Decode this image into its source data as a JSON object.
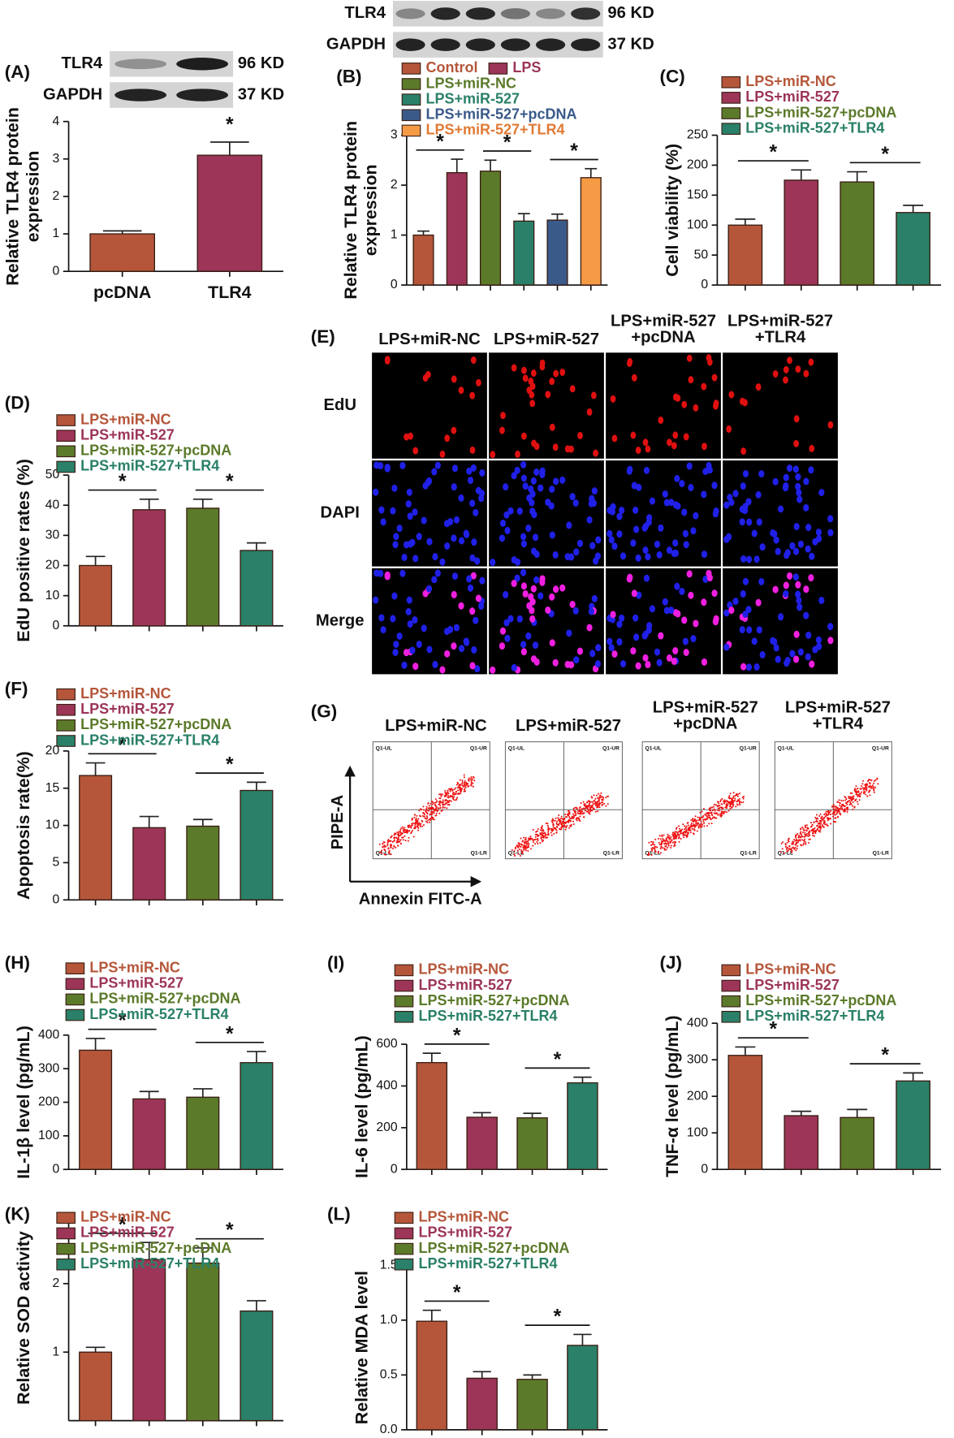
{
  "chart_data": [
    {
      "panel": "(A)",
      "type": "bar",
      "ylabel": [
        "Relative TLR4 protein",
        "expression"
      ],
      "categories": [
        "pcDNA",
        "TLR4"
      ],
      "values": [
        1.0,
        3.1
      ],
      "errors": [
        0.08,
        0.35
      ],
      "colors": [
        "#b5563a",
        "#9c3558"
      ],
      "ylim": [
        0,
        4
      ],
      "yticks": [
        0,
        1,
        2,
        3,
        4
      ],
      "annotations": [
        {
          "label": "*",
          "pair": [
            1,
            1
          ]
        }
      ]
    },
    {
      "panel": "(B)",
      "type": "bar",
      "ylabel": [
        "Relative TLR4 protein",
        "expression"
      ],
      "categories": [
        null,
        null,
        null,
        null,
        null,
        null
      ],
      "legend": [
        "Control",
        "LPS",
        "LPS+miR-NC",
        "LPS+miR-527",
        "LPS+miR-527+pcDNA",
        "LPS+miR-527+TLR4"
      ],
      "values": [
        1.0,
        2.25,
        2.28,
        1.28,
        1.3,
        2.15
      ],
      "errors": [
        0.08,
        0.27,
        0.22,
        0.15,
        0.12,
        0.18
      ],
      "colors": [
        "#b5563a",
        "#9c3558",
        "#5b7a2a",
        "#2a8068",
        "#3a5a8a",
        "#f59a45"
      ],
      "ylim": [
        0,
        3
      ],
      "yticks": [
        0,
        1,
        2,
        3
      ],
      "annotations": [
        {
          "label": "*",
          "pair": [
            0,
            1
          ]
        },
        {
          "label": "*",
          "pair": [
            2,
            3
          ]
        },
        {
          "label": "*",
          "pair": [
            4,
            5
          ]
        }
      ]
    },
    {
      "panel": "(C)",
      "type": "bar",
      "ylabel": "Cell viability (%)",
      "categories": [
        null,
        null,
        null,
        null
      ],
      "legend": [
        "LPS+miR-NC",
        "LPS+miR-527",
        "LPS+miR-527+pcDNA",
        "LPS+miR-527+TLR4"
      ],
      "values": [
        100,
        175,
        172,
        121
      ],
      "errors": [
        10,
        17,
        17,
        12
      ],
      "colors": [
        "#b5563a",
        "#9c3558",
        "#5b7a2a",
        "#2a8068"
      ],
      "ylim": [
        0,
        250
      ],
      "yticks": [
        0,
        50,
        100,
        150,
        200,
        250
      ],
      "annotations": [
        {
          "label": "*",
          "pair": [
            0,
            1
          ]
        },
        {
          "label": "*",
          "pair": [
            2,
            3
          ]
        }
      ]
    },
    {
      "panel": "(D)",
      "type": "bar",
      "ylabel": "EdU positive rates (%)",
      "categories": [
        null,
        null,
        null,
        null
      ],
      "legend": [
        "LPS+miR-NC",
        "LPS+miR-527",
        "LPS+miR-527+pcDNA",
        "LPS+miR-527+TLR4"
      ],
      "values": [
        20,
        38.5,
        39,
        25
      ],
      "errors": [
        3,
        3.5,
        3,
        2.5
      ],
      "colors": [
        "#b5563a",
        "#9c3558",
        "#5b7a2a",
        "#2a8068"
      ],
      "ylim": [
        0,
        50
      ],
      "yticks": [
        0,
        10,
        20,
        30,
        40,
        50
      ],
      "annotations": [
        {
          "label": "*",
          "pair": [
            0,
            1
          ]
        },
        {
          "label": "*",
          "pair": [
            2,
            3
          ]
        }
      ]
    },
    {
      "panel": "(F)",
      "type": "bar",
      "ylabel": "Apoptosis rate(%)",
      "categories": [
        null,
        null,
        null,
        null
      ],
      "legend": [
        "LPS+miR-NC",
        "LPS+miR-527",
        "LPS+miR-527+pcDNA",
        "LPS+miR-527+TLR4"
      ],
      "values": [
        16.7,
        9.7,
        9.9,
        14.7
      ],
      "errors": [
        1.7,
        1.5,
        0.9,
        1.1
      ],
      "colors": [
        "#b5563a",
        "#9c3558",
        "#5b7a2a",
        "#2a8068"
      ],
      "ylim": [
        0,
        20
      ],
      "yticks": [
        0,
        5,
        10,
        15,
        20
      ],
      "annotations": [
        {
          "label": "*",
          "pair": [
            0,
            1
          ]
        },
        {
          "label": "*",
          "pair": [
            2,
            3
          ]
        }
      ]
    },
    {
      "panel": "(H)",
      "type": "bar",
      "ylabel": "IL-1β level (pg/mL)",
      "categories": [
        null,
        null,
        null,
        null
      ],
      "legend": [
        "LPS+miR-NC",
        "LPS+miR-527",
        "LPS+miR-527+pcDNA",
        "LPS+miR-527+TLR4"
      ],
      "values": [
        355,
        210,
        215,
        318
      ],
      "errors": [
        35,
        22,
        25,
        33
      ],
      "colors": [
        "#b5563a",
        "#9c3558",
        "#5b7a2a",
        "#2a8068"
      ],
      "ylim": [
        0,
        400
      ],
      "yticks": [
        0,
        100,
        200,
        300,
        400
      ],
      "annotations": [
        {
          "label": "*",
          "pair": [
            0,
            1
          ]
        },
        {
          "label": "*",
          "pair": [
            2,
            3
          ]
        }
      ]
    },
    {
      "panel": "(I)",
      "type": "bar",
      "ylabel": "IL-6 level (pg/mL)",
      "categories": [
        null,
        null,
        null,
        null
      ],
      "legend": [
        "LPS+miR-NC",
        "LPS+miR-527",
        "LPS+miR-527+pcDNA",
        "LPS+miR-527+TLR4"
      ],
      "values": [
        512,
        250,
        247,
        415
      ],
      "errors": [
        45,
        22,
        22,
        27
      ],
      "colors": [
        "#b5563a",
        "#9c3558",
        "#5b7a2a",
        "#2a8068"
      ],
      "ylim": [
        0,
        600
      ],
      "yticks": [
        0,
        200,
        400,
        600
      ],
      "annotations": [
        {
          "label": "*",
          "pair": [
            0,
            1
          ]
        },
        {
          "label": "*",
          "pair": [
            2,
            3
          ]
        }
      ]
    },
    {
      "panel": "(J)",
      "type": "bar",
      "ylabel": "TNF-α level (pg/mL)",
      "categories": [
        null,
        null,
        null,
        null
      ],
      "legend": [
        "LPS+miR-NC",
        "LPS+miR-527",
        "LPS+miR-527+pcDNA",
        "LPS+miR-527+TLR4"
      ],
      "values": [
        312,
        147,
        142,
        242
      ],
      "errors": [
        23,
        12,
        22,
        22
      ],
      "colors": [
        "#b5563a",
        "#9c3558",
        "#5b7a2a",
        "#2a8068"
      ],
      "ylim": [
        0,
        400
      ],
      "yticks": [
        0,
        100,
        200,
        300,
        400
      ],
      "annotations": [
        {
          "label": "*",
          "pair": [
            0,
            1
          ]
        },
        {
          "label": "*",
          "pair": [
            2,
            3
          ]
        }
      ]
    },
    {
      "panel": "(K)",
      "type": "bar",
      "ylabel": "Relative SOD activity",
      "categories": [
        null,
        null,
        null,
        null
      ],
      "legend": [
        "LPS+miR-NC",
        "LPS+miR-527",
        "LPS+miR-527+pcDNA",
        "LPS+miR-527+TLR4"
      ],
      "values": [
        1.0,
        2.35,
        2.3,
        1.6
      ],
      "errors": [
        0.07,
        0.25,
        0.22,
        0.15
      ],
      "colors": [
        "#b5563a",
        "#9c3558",
        "#5b7a2a",
        "#2a8068"
      ],
      "ylim": [
        0,
        3
      ],
      "yticks": [
        1,
        2
      ],
      "annotations": [
        {
          "label": "*",
          "pair": [
            0,
            1
          ]
        },
        {
          "label": "*",
          "pair": [
            2,
            3
          ]
        }
      ]
    },
    {
      "panel": "(L)",
      "type": "bar",
      "ylabel": "Relative MDA level",
      "categories": [
        null,
        null,
        null,
        null
      ],
      "legend": [
        "LPS+miR-NC",
        "LPS+miR-527",
        "LPS+miR-527+pcDNA",
        "LPS+miR-527+TLR4"
      ],
      "values": [
        0.99,
        0.47,
        0.46,
        0.77
      ],
      "errors": [
        0.1,
        0.06,
        0.04,
        0.1
      ],
      "colors": [
        "#b5563a",
        "#9c3558",
        "#5b7a2a",
        "#2a8068"
      ],
      "ylim": [
        0,
        1.5
      ],
      "yticks": [
        {
          "value": 0,
          "label": "0.0"
        },
        0.5,
        {
          "value": 1,
          "label": "1.0"
        },
        1.5
      ],
      "annotations": [
        {
          "label": "*",
          "pair": [
            0,
            1
          ]
        },
        {
          "label": "*",
          "pair": [
            2,
            3
          ]
        }
      ]
    }
  ],
  "blots": {
    "A": [
      {
        "protein": "TLR4",
        "size": "96 KD"
      },
      {
        "protein": "GAPDH",
        "size": "37 KD"
      }
    ],
    "B": [
      {
        "protein": "TLR4",
        "size": "96 KD"
      },
      {
        "protein": "GAPDH",
        "size": "37 KD"
      }
    ]
  },
  "imaging": {
    "panel": "(E)",
    "columns": [
      [
        "LPS+miR-NC"
      ],
      [
        "LPS+miR-527"
      ],
      [
        "LPS+miR-527",
        "+pcDNA"
      ],
      [
        "LPS+miR-527",
        "+TLR4"
      ]
    ],
    "rows": [
      "EdU",
      "DAPI",
      "Merge"
    ]
  },
  "flow": {
    "panel": "(G)",
    "columns": [
      [
        "LPS+miR-NC"
      ],
      [
        "LPS+miR-527"
      ],
      [
        "LPS+miR-527",
        "+pcDNA"
      ],
      [
        "LPS+miR-527",
        "+TLR4"
      ]
    ],
    "y_axis": "PIPE-A",
    "x_axis": "Annexin FITC-A",
    "quadrants": [
      "Q1-UL",
      "Q1-UR",
      "Q1-LL",
      "Q1-LR"
    ]
  }
}
